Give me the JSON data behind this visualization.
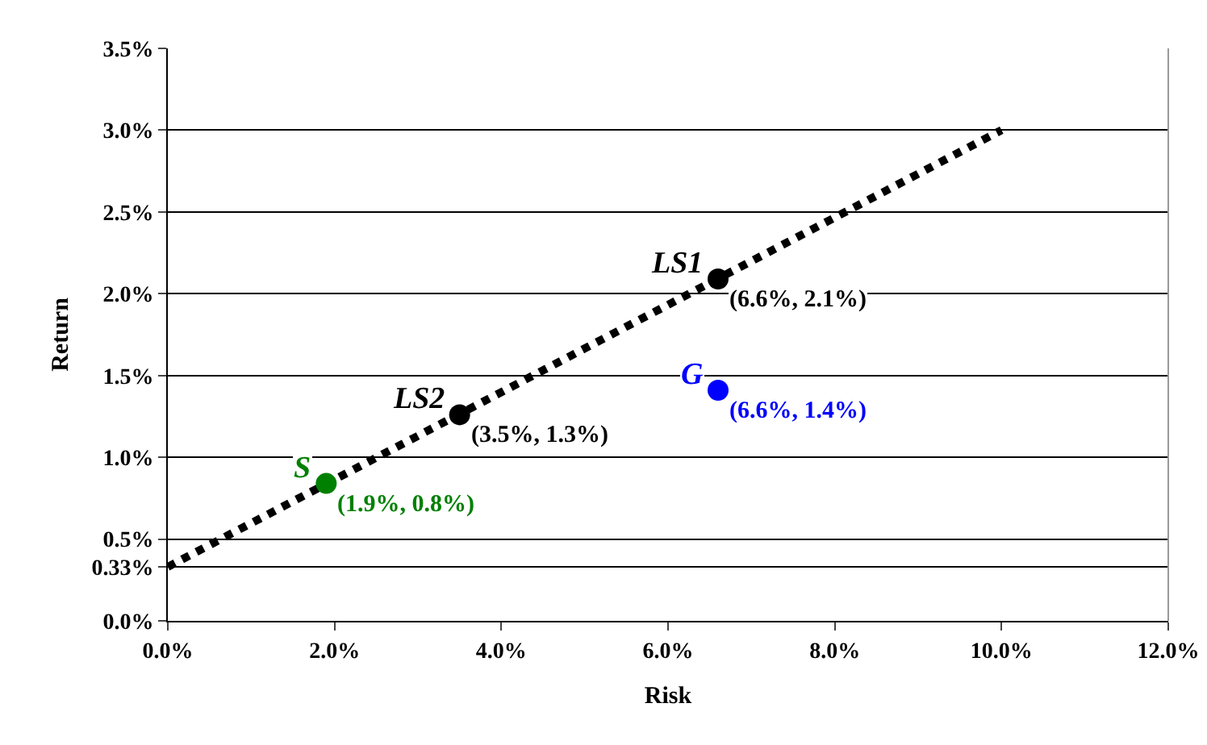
{
  "chart_data": {
    "type": "scatter",
    "xlabel": "Risk",
    "ylabel": "Return",
    "xlim": [
      0,
      12
    ],
    "ylim": [
      0,
      3.5
    ],
    "xticks": [
      {
        "value": 0,
        "label": "0.0%"
      },
      {
        "value": 2,
        "label": "2.0%"
      },
      {
        "value": 4,
        "label": "4.0%"
      },
      {
        "value": 6,
        "label": "6.0%"
      },
      {
        "value": 8,
        "label": "8.0%"
      },
      {
        "value": 10,
        "label": "10.0%"
      },
      {
        "value": 12,
        "label": "12.0%"
      }
    ],
    "yticks": [
      {
        "value": 0,
        "label": "0.0%"
      },
      {
        "value": 0.33,
        "label": "0.33%"
      },
      {
        "value": 0.5,
        "label": "0.5%"
      },
      {
        "value": 1,
        "label": "1.0%"
      },
      {
        "value": 1.5,
        "label": "1.5%"
      },
      {
        "value": 2,
        "label": "2.0%"
      },
      {
        "value": 2.5,
        "label": "2.5%"
      },
      {
        "value": 3,
        "label": "3.0%"
      },
      {
        "value": 3.5,
        "label": "3.5%"
      }
    ],
    "grid": "y",
    "legend": false,
    "series": [
      {
        "type": "line",
        "line_style": "dotted",
        "color": "#000000",
        "x": [
          0,
          10
        ],
        "values": [
          0.33,
          3.0
        ]
      },
      {
        "name": "S",
        "marker": "circle",
        "color": "#008000",
        "x": [
          1.9
        ],
        "values": [
          0.84
        ],
        "value_labels": [
          "(1.9%, 0.8%)"
        ]
      },
      {
        "name": "LS2",
        "marker": "circle",
        "color": "#000000",
        "x": [
          3.5
        ],
        "values": [
          1.26
        ],
        "value_labels": [
          "(3.5%, 1.3%)"
        ]
      },
      {
        "name": "LS1",
        "marker": "circle",
        "color": "#000000",
        "x": [
          6.6
        ],
        "values": [
          2.09
        ],
        "value_labels": [
          "(6.6%, 2.1%)"
        ]
      },
      {
        "name": "G",
        "marker": "circle",
        "color": "#0000ff",
        "x": [
          6.6
        ],
        "values": [
          1.41
        ],
        "value_labels": [
          "(6.6%, 1.4%)"
        ]
      }
    ]
  }
}
